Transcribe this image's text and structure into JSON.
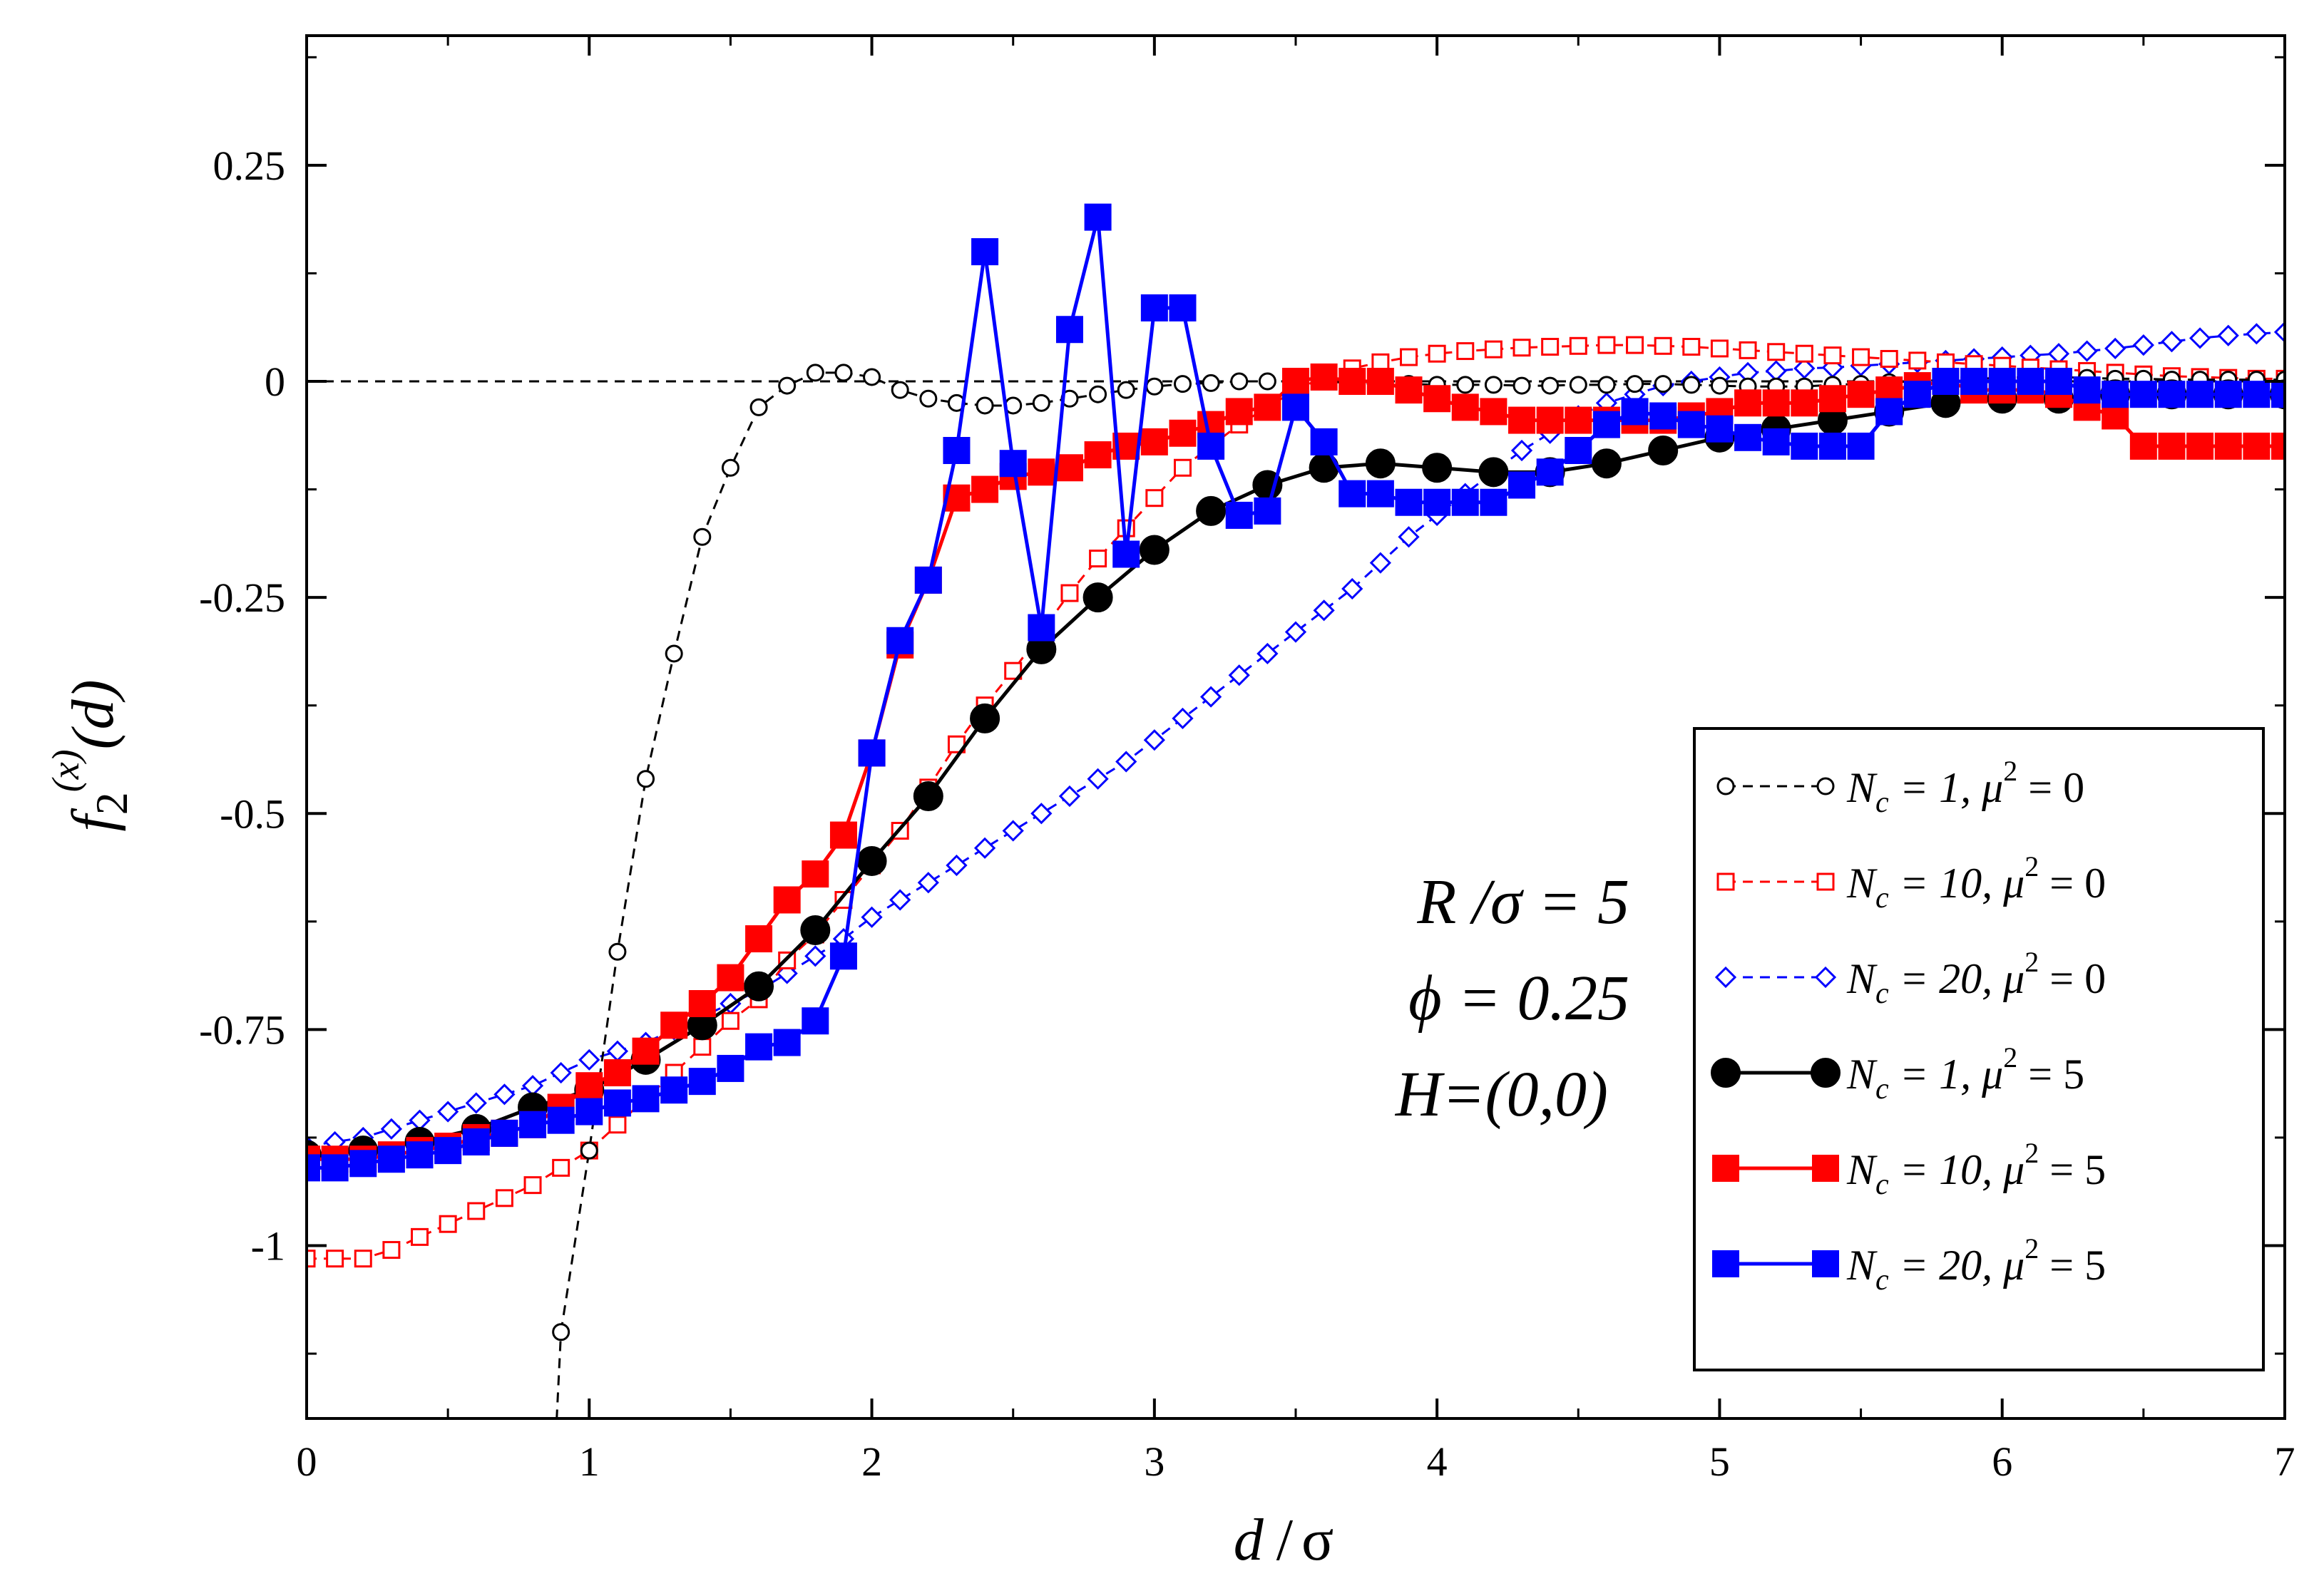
{
  "chart_data": {
    "type": "line",
    "xlabel_parts": [
      "d",
      "/",
      "σ"
    ],
    "ylabel_parts": [
      "f",
      "2",
      "(x)",
      "(d)"
    ],
    "xlim": [
      0,
      7
    ],
    "ylim": [
      -1.2,
      0.4
    ],
    "xticks": [
      0,
      1,
      2,
      3,
      4,
      5,
      6,
      7
    ],
    "xtick_labels": [
      "0",
      "1",
      "2",
      "3",
      "4",
      "5",
      "6",
      "7"
    ],
    "yticks": [
      -1.0,
      -0.75,
      -0.5,
      -0.25,
      0,
      0.25
    ],
    "ytick_labels": [
      "-1",
      "-0.75",
      "-0.5",
      "-0.25",
      "0",
      "0.25"
    ],
    "reference_line": {
      "y": 0,
      "style": "dashed",
      "color": "#000000"
    },
    "annotations": [
      "R /σ = 5",
      "ϕ = 0.25",
      "H=(0,0)"
    ],
    "series": [
      {
        "name": "N_c = 1, μ^2 = 0",
        "legend": {
          "N": "N",
          "sub": "c",
          "eq": " = 1,  μ",
          "sup": "2",
          "tail": " = 0"
        },
        "color": "#000000",
        "line": "dashed",
        "marker": "circle",
        "filled": false,
        "marker_size": "small",
        "x": [
          0.9,
          1.0,
          1.1,
          1.2,
          1.3,
          1.4,
          1.5,
          1.6,
          1.7,
          1.8,
          1.9,
          2.0,
          2.1,
          2.2,
          2.3,
          2.4,
          2.5,
          2.6,
          2.7,
          2.8,
          2.9,
          3.0,
          3.1,
          3.2,
          3.3,
          3.4,
          3.5,
          3.6,
          3.7,
          3.8,
          3.9,
          4.0,
          4.1,
          4.2,
          4.3,
          4.4,
          4.5,
          4.6,
          4.7,
          4.8,
          4.9,
          5.0,
          5.1,
          5.2,
          5.3,
          5.4,
          5.5,
          5.6,
          5.7,
          5.8,
          5.9,
          6.0,
          6.1,
          6.2,
          6.3,
          6.4,
          6.5,
          6.6,
          6.7,
          6.8,
          6.9,
          7.0
        ],
        "y": [
          -1.1,
          -0.89,
          -0.66,
          -0.46,
          -0.315,
          -0.18,
          -0.1,
          -0.03,
          -0.005,
          0.01,
          0.01,
          0.005,
          -0.01,
          -0.02,
          -0.025,
          -0.028,
          -0.028,
          -0.025,
          -0.02,
          -0.015,
          -0.01,
          -0.006,
          -0.003,
          -0.002,
          0.0,
          0.0,
          0.0,
          0.0,
          -0.002,
          -0.003,
          -0.003,
          -0.004,
          -0.004,
          -0.004,
          -0.005,
          -0.005,
          -0.004,
          -0.004,
          -0.003,
          -0.003,
          -0.004,
          -0.005,
          -0.006,
          -0.006,
          -0.006,
          -0.004,
          -0.003,
          -0.001,
          0.0,
          0.002,
          0.003,
          0.004,
          0.005,
          0.005,
          0.004,
          0.003,
          0.003,
          0.002,
          0.002,
          0.002,
          0.002,
          0.002
        ],
        "extra_line": {
          "x": [
            0.87,
            0.9
          ],
          "y": [
            -1.3,
            -1.1
          ]
        }
      },
      {
        "name": "N_c = 10, μ^2 = 0",
        "legend": {
          "N": "N",
          "sub": "c",
          "eq": " = 10,  μ",
          "sup": "2",
          "tail": " = 0"
        },
        "color": "#ff0000",
        "line": "dashed",
        "marker": "square",
        "filled": false,
        "marker_size": "small",
        "x": [
          0.0,
          0.1,
          0.2,
          0.3,
          0.4,
          0.5,
          0.6,
          0.7,
          0.8,
          0.9,
          1.0,
          1.1,
          1.2,
          1.3,
          1.4,
          1.5,
          1.6,
          1.7,
          1.8,
          1.9,
          2.0,
          2.1,
          2.2,
          2.3,
          2.4,
          2.5,
          2.6,
          2.7,
          2.8,
          2.9,
          3.0,
          3.1,
          3.2,
          3.3,
          3.4,
          3.5,
          3.6,
          3.7,
          3.8,
          3.9,
          4.0,
          4.1,
          4.2,
          4.3,
          4.4,
          4.5,
          4.6,
          4.7,
          4.8,
          4.9,
          5.0,
          5.1,
          5.2,
          5.3,
          5.4,
          5.5,
          5.6,
          5.7,
          5.8,
          5.9,
          6.0,
          6.1,
          6.2,
          6.3,
          6.4,
          6.5,
          6.6,
          6.7,
          6.8,
          6.9,
          7.0
        ],
        "y": [
          -1.015,
          -1.015,
          -1.015,
          -1.005,
          -0.99,
          -0.975,
          -0.96,
          -0.945,
          -0.93,
          -0.91,
          -0.89,
          -0.86,
          -0.83,
          -0.8,
          -0.77,
          -0.74,
          -0.715,
          -0.67,
          -0.64,
          -0.6,
          -0.56,
          -0.52,
          -0.47,
          -0.42,
          -0.375,
          -0.335,
          -0.29,
          -0.245,
          -0.205,
          -0.17,
          -0.135,
          -0.1,
          -0.075,
          -0.05,
          -0.03,
          -0.01,
          0.005,
          0.015,
          0.022,
          0.028,
          0.032,
          0.035,
          0.037,
          0.039,
          0.04,
          0.041,
          0.042,
          0.042,
          0.041,
          0.04,
          0.038,
          0.036,
          0.034,
          0.032,
          0.03,
          0.028,
          0.026,
          0.024,
          0.022,
          0.02,
          0.018,
          0.016,
          0.014,
          0.012,
          0.01,
          0.008,
          0.006,
          0.005,
          0.004,
          0.003,
          0.003
        ]
      },
      {
        "name": "N_c = 20, μ^2 = 0",
        "legend": {
          "N": "N",
          "sub": "c",
          "eq": " = 20,  μ",
          "sup": "2",
          "tail": " = 0"
        },
        "color": "#0000ff",
        "line": "dashed",
        "marker": "diamond",
        "filled": false,
        "marker_size": "small",
        "x": [
          0.0,
          0.1,
          0.2,
          0.3,
          0.4,
          0.5,
          0.6,
          0.7,
          0.8,
          0.9,
          1.0,
          1.1,
          1.2,
          1.3,
          1.4,
          1.5,
          1.6,
          1.7,
          1.8,
          1.9,
          2.0,
          2.1,
          2.2,
          2.3,
          2.4,
          2.5,
          2.6,
          2.7,
          2.8,
          2.9,
          3.0,
          3.1,
          3.2,
          3.3,
          3.4,
          3.5,
          3.6,
          3.7,
          3.8,
          3.9,
          4.0,
          4.1,
          4.2,
          4.3,
          4.4,
          4.5,
          4.6,
          4.7,
          4.8,
          4.9,
          5.0,
          5.1,
          5.2,
          5.3,
          5.4,
          5.5,
          5.6,
          5.7,
          5.8,
          5.9,
          6.0,
          6.1,
          6.2,
          6.3,
          6.4,
          6.5,
          6.6,
          6.7,
          6.8,
          6.9,
          7.0
        ],
        "y": [
          -0.885,
          -0.88,
          -0.875,
          -0.865,
          -0.855,
          -0.845,
          -0.835,
          -0.825,
          -0.815,
          -0.8,
          -0.785,
          -0.775,
          -0.765,
          -0.75,
          -0.735,
          -0.72,
          -0.705,
          -0.685,
          -0.665,
          -0.645,
          -0.62,
          -0.6,
          -0.58,
          -0.56,
          -0.54,
          -0.52,
          -0.5,
          -0.48,
          -0.46,
          -0.44,
          -0.415,
          -0.39,
          -0.365,
          -0.34,
          -0.315,
          -0.29,
          -0.265,
          -0.24,
          -0.21,
          -0.18,
          -0.155,
          -0.13,
          -0.105,
          -0.08,
          -0.06,
          -0.04,
          -0.025,
          -0.015,
          -0.005,
          0.0,
          0.005,
          0.01,
          0.012,
          0.015,
          0.016,
          0.018,
          0.02,
          0.022,
          0.024,
          0.026,
          0.028,
          0.03,
          0.032,
          0.035,
          0.038,
          0.042,
          0.046,
          0.05,
          0.053,
          0.055,
          0.057
        ]
      },
      {
        "name": "N_c = 1, μ^2 = 5",
        "legend": {
          "N": "N",
          "sub": "c",
          "eq": " = 1,  μ",
          "sup": "2",
          "tail": " = 5"
        },
        "color": "#000000",
        "line": "solid",
        "marker": "circle",
        "filled": true,
        "marker_size": "large",
        "x": [
          0.0,
          0.2,
          0.4,
          0.6,
          0.8,
          1.0,
          1.2,
          1.4,
          1.6,
          1.8,
          2.0,
          2.2,
          2.4,
          2.6,
          2.8,
          3.0,
          3.2,
          3.4,
          3.6,
          3.8,
          4.0,
          4.2,
          4.4,
          4.6,
          4.8,
          5.0,
          5.2,
          5.4,
          5.6,
          5.8,
          6.0,
          6.2,
          6.4,
          6.6,
          6.8,
          7.0
        ],
        "y": [
          -0.895,
          -0.89,
          -0.88,
          -0.865,
          -0.84,
          -0.82,
          -0.785,
          -0.745,
          -0.7,
          -0.635,
          -0.555,
          -0.48,
          -0.39,
          -0.31,
          -0.25,
          -0.195,
          -0.15,
          -0.12,
          -0.1,
          -0.095,
          -0.1,
          -0.105,
          -0.105,
          -0.095,
          -0.08,
          -0.065,
          -0.055,
          -0.045,
          -0.035,
          -0.025,
          -0.02,
          -0.02,
          -0.015,
          -0.015,
          -0.015,
          -0.015
        ]
      },
      {
        "name": "N_c = 10, μ^2 = 5",
        "legend": {
          "N": "N",
          "sub": "c",
          "eq": " = 10,  μ",
          "sup": "2",
          "tail": " = 5"
        },
        "color": "#ff0000",
        "line": "solid",
        "marker": "square",
        "filled": true,
        "marker_size": "large",
        "x": [
          0.0,
          0.1,
          0.2,
          0.3,
          0.4,
          0.5,
          0.6,
          0.7,
          0.8,
          0.9,
          1.0,
          1.1,
          1.2,
          1.3,
          1.4,
          1.5,
          1.6,
          1.7,
          1.8,
          1.9,
          2.0,
          2.1,
          2.2,
          2.3,
          2.4,
          2.5,
          2.6,
          2.7,
          2.8,
          2.9,
          3.0,
          3.1,
          3.2,
          3.3,
          3.4,
          3.5,
          3.6,
          3.7,
          3.8,
          3.9,
          4.0,
          4.1,
          4.2,
          4.3,
          4.4,
          4.5,
          4.6,
          4.7,
          4.8,
          4.9,
          5.0,
          5.1,
          5.2,
          5.3,
          5.4,
          5.5,
          5.6,
          5.7,
          5.8,
          5.9,
          6.0,
          6.1,
          6.2,
          6.3,
          6.4,
          6.5,
          6.6,
          6.7,
          6.8,
          6.9,
          7.0
        ],
        "y": [
          -0.9,
          -0.9,
          -0.9,
          -0.895,
          -0.89,
          -0.885,
          -0.875,
          -0.87,
          -0.86,
          -0.84,
          -0.815,
          -0.8,
          -0.775,
          -0.745,
          -0.72,
          -0.69,
          -0.645,
          -0.6,
          -0.57,
          -0.525,
          -0.43,
          -0.305,
          -0.23,
          -0.135,
          -0.125,
          -0.11,
          -0.105,
          -0.1,
          -0.085,
          -0.075,
          -0.07,
          -0.06,
          -0.05,
          -0.035,
          -0.03,
          0.0,
          0.005,
          0.0,
          0.0,
          -0.01,
          -0.02,
          -0.03,
          -0.035,
          -0.045,
          -0.045,
          -0.045,
          -0.045,
          -0.045,
          -0.045,
          -0.04,
          -0.035,
          -0.025,
          -0.025,
          -0.025,
          -0.02,
          -0.015,
          -0.01,
          -0.005,
          0.0,
          -0.01,
          -0.01,
          -0.01,
          -0.015,
          -0.03,
          -0.04,
          -0.075,
          -0.075,
          -0.075,
          -0.075,
          -0.075,
          -0.075
        ]
      },
      {
        "name": "N_c = 20, μ^2 = 5",
        "legend": {
          "N": "N",
          "sub": "c",
          "eq": " = 20,  μ",
          "sup": "2",
          "tail": " = 5"
        },
        "color": "#0000ff",
        "line": "solid",
        "marker": "square",
        "filled": true,
        "marker_size": "large",
        "x": [
          0.0,
          0.1,
          0.2,
          0.3,
          0.4,
          0.5,
          0.6,
          0.7,
          0.8,
          0.9,
          1.0,
          1.1,
          1.2,
          1.3,
          1.4,
          1.5,
          1.6,
          1.7,
          1.8,
          1.9,
          2.0,
          2.1,
          2.2,
          2.3,
          2.4,
          2.5,
          2.6,
          2.7,
          2.8,
          2.9,
          3.0,
          3.1,
          3.2,
          3.3,
          3.4,
          3.5,
          3.6,
          3.7,
          3.8,
          3.9,
          4.0,
          4.1,
          4.2,
          4.3,
          4.4,
          4.5,
          4.6,
          4.7,
          4.8,
          4.9,
          5.0,
          5.1,
          5.2,
          5.3,
          5.4,
          5.5,
          5.6,
          5.7,
          5.8,
          5.9,
          6.0,
          6.1,
          6.2,
          6.3,
          6.4,
          6.5,
          6.6,
          6.7,
          6.8,
          6.9,
          7.0
        ],
        "y": [
          -0.91,
          -0.91,
          -0.905,
          -0.9,
          -0.895,
          -0.89,
          -0.88,
          -0.87,
          -0.86,
          -0.855,
          -0.845,
          -0.835,
          -0.83,
          -0.82,
          -0.81,
          -0.795,
          -0.77,
          -0.765,
          -0.74,
          -0.665,
          -0.43,
          -0.3,
          -0.23,
          -0.08,
          0.15,
          -0.095,
          -0.285,
          0.06,
          0.19,
          -0.2,
          0.085,
          0.085,
          -0.075,
          -0.155,
          -0.15,
          -0.03,
          -0.07,
          -0.13,
          -0.13,
          -0.14,
          -0.14,
          -0.14,
          -0.14,
          -0.12,
          -0.105,
          -0.08,
          -0.05,
          -0.035,
          -0.04,
          -0.05,
          -0.055,
          -0.065,
          -0.07,
          -0.075,
          -0.075,
          -0.075,
          -0.035,
          -0.015,
          0.0,
          0.0,
          0.0,
          0.0,
          0.0,
          -0.01,
          -0.015,
          -0.015,
          -0.015,
          -0.015,
          -0.015,
          -0.015,
          -0.015
        ]
      }
    ]
  }
}
